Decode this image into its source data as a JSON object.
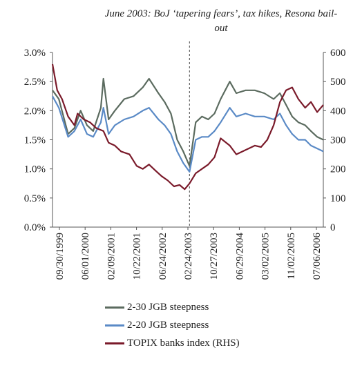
{
  "chart_data": {
    "type": "line",
    "annotation": "June 2003: BoJ ‘tapering fears’, tax hikes, Resona bail-out",
    "annotation_x": "2003-06-01",
    "y_left": {
      "ticks": [
        "0.0%",
        "0.5%",
        "1.0%",
        "1.5%",
        "2.0%",
        "2.5%",
        "3.0%"
      ],
      "range": [
        0,
        3.0
      ]
    },
    "y_right": {
      "ticks": [
        "0",
        "100",
        "200",
        "300",
        "400",
        "500",
        "600"
      ],
      "range": [
        0,
        600
      ]
    },
    "x_range": [
      "1999-09-30",
      "2006-12-31"
    ],
    "x_ticks": [
      "09/30/1999",
      "06/01/2000",
      "02/09/2001",
      "10/22/2001",
      "06/24/2002",
      "02/24/2003",
      "10/27/2003",
      "06/29/2004",
      "03/02/2005",
      "11/02/2005",
      "07/06/2006"
    ],
    "grid": false,
    "legend_position": "bottom",
    "series": [
      {
        "name": "2-30 JGB steepness",
        "axis": "left",
        "color": "#5b6b5f",
        "points": [
          [
            "1999-09-30",
            2.35
          ],
          [
            "1999-12-01",
            2.2
          ],
          [
            "2000-03-01",
            1.6
          ],
          [
            "2000-05-01",
            1.7
          ],
          [
            "2000-07-01",
            2.0
          ],
          [
            "2000-09-01",
            1.75
          ],
          [
            "2000-11-01",
            1.65
          ],
          [
            "2001-01-15",
            2.05
          ],
          [
            "2001-02-09",
            2.55
          ],
          [
            "2001-04-01",
            1.85
          ],
          [
            "2001-06-01",
            2.0
          ],
          [
            "2001-09-01",
            2.2
          ],
          [
            "2001-12-01",
            2.25
          ],
          [
            "2002-03-01",
            2.4
          ],
          [
            "2002-05-01",
            2.55
          ],
          [
            "2002-08-01",
            2.3
          ],
          [
            "2002-10-01",
            2.15
          ],
          [
            "2002-12-01",
            1.95
          ],
          [
            "2003-02-01",
            1.5
          ],
          [
            "2003-04-01",
            1.3
          ],
          [
            "2003-06-01",
            1.05
          ],
          [
            "2003-08-01",
            1.8
          ],
          [
            "2003-10-01",
            1.9
          ],
          [
            "2003-12-01",
            1.85
          ],
          [
            "2004-02-01",
            1.95
          ],
          [
            "2004-04-01",
            2.2
          ],
          [
            "2004-06-29",
            2.5
          ],
          [
            "2004-09-01",
            2.3
          ],
          [
            "2004-12-01",
            2.35
          ],
          [
            "2005-03-01",
            2.35
          ],
          [
            "2005-06-01",
            2.3
          ],
          [
            "2005-09-01",
            2.2
          ],
          [
            "2005-11-01",
            2.3
          ],
          [
            "2006-01-01",
            2.1
          ],
          [
            "2006-03-01",
            1.9
          ],
          [
            "2006-05-01",
            1.8
          ],
          [
            "2006-07-06",
            1.75
          ],
          [
            "2006-09-01",
            1.65
          ],
          [
            "2006-11-01",
            1.55
          ],
          [
            "2006-12-31",
            1.5
          ]
        ]
      },
      {
        "name": "2-20 JGB steepness",
        "axis": "left",
        "color": "#5a8ac6",
        "points": [
          [
            "1999-09-30",
            2.25
          ],
          [
            "1999-12-01",
            2.05
          ],
          [
            "2000-03-01",
            1.55
          ],
          [
            "2000-05-01",
            1.65
          ],
          [
            "2000-07-01",
            1.85
          ],
          [
            "2000-09-01",
            1.6
          ],
          [
            "2000-11-01",
            1.55
          ],
          [
            "2001-01-15",
            1.8
          ],
          [
            "2001-02-09",
            2.05
          ],
          [
            "2001-04-01",
            1.6
          ],
          [
            "2001-06-01",
            1.75
          ],
          [
            "2001-09-01",
            1.85
          ],
          [
            "2001-12-01",
            1.9
          ],
          [
            "2002-03-01",
            2.0
          ],
          [
            "2002-05-01",
            2.05
          ],
          [
            "2002-08-01",
            1.85
          ],
          [
            "2002-10-01",
            1.75
          ],
          [
            "2002-12-01",
            1.6
          ],
          [
            "2003-02-01",
            1.3
          ],
          [
            "2003-04-01",
            1.1
          ],
          [
            "2003-06-01",
            0.95
          ],
          [
            "2003-08-01",
            1.5
          ],
          [
            "2003-10-01",
            1.55
          ],
          [
            "2003-12-01",
            1.55
          ],
          [
            "2004-02-01",
            1.65
          ],
          [
            "2004-04-01",
            1.8
          ],
          [
            "2004-06-29",
            2.05
          ],
          [
            "2004-09-01",
            1.9
          ],
          [
            "2004-12-01",
            1.95
          ],
          [
            "2005-03-01",
            1.9
          ],
          [
            "2005-06-01",
            1.9
          ],
          [
            "2005-09-01",
            1.85
          ],
          [
            "2005-11-01",
            1.95
          ],
          [
            "2006-01-01",
            1.75
          ],
          [
            "2006-03-01",
            1.6
          ],
          [
            "2006-05-01",
            1.5
          ],
          [
            "2006-07-06",
            1.5
          ],
          [
            "2006-09-01",
            1.4
          ],
          [
            "2006-11-01",
            1.35
          ],
          [
            "2006-12-31",
            1.3
          ]
        ]
      },
      {
        "name": "TOPIX banks index (RHS)",
        "axis": "right",
        "color": "#7a1a2a",
        "points": [
          [
            "1999-09-30",
            560
          ],
          [
            "1999-11-15",
            470
          ],
          [
            "2000-01-01",
            440
          ],
          [
            "2000-03-01",
            380
          ],
          [
            "2000-05-01",
            350
          ],
          [
            "2000-06-01",
            390
          ],
          [
            "2000-08-01",
            370
          ],
          [
            "2000-10-01",
            360
          ],
          [
            "2000-12-01",
            340
          ],
          [
            "2001-02-09",
            330
          ],
          [
            "2001-04-01",
            290
          ],
          [
            "2001-06-01",
            280
          ],
          [
            "2001-08-01",
            260
          ],
          [
            "2001-10-22",
            250
          ],
          [
            "2002-01-01",
            210
          ],
          [
            "2002-03-01",
            200
          ],
          [
            "2002-05-01",
            215
          ],
          [
            "2002-07-01",
            195
          ],
          [
            "2002-09-01",
            175
          ],
          [
            "2002-11-01",
            160
          ],
          [
            "2003-01-01",
            140
          ],
          [
            "2003-02-24",
            145
          ],
          [
            "2003-04-15",
            130
          ],
          [
            "2003-06-01",
            150
          ],
          [
            "2003-08-01",
            185
          ],
          [
            "2003-10-01",
            200
          ],
          [
            "2003-12-01",
            215
          ],
          [
            "2004-02-01",
            240
          ],
          [
            "2004-04-01",
            305
          ],
          [
            "2004-06-29",
            280
          ],
          [
            "2004-09-01",
            250
          ],
          [
            "2004-12-01",
            265
          ],
          [
            "2005-03-02",
            280
          ],
          [
            "2005-05-01",
            275
          ],
          [
            "2005-07-01",
            300
          ],
          [
            "2005-09-01",
            350
          ],
          [
            "2005-11-02",
            430
          ],
          [
            "2006-01-01",
            470
          ],
          [
            "2006-03-01",
            480
          ],
          [
            "2006-05-01",
            440
          ],
          [
            "2006-07-06",
            410
          ],
          [
            "2006-09-01",
            430
          ],
          [
            "2006-11-01",
            395
          ],
          [
            "2006-12-31",
            420
          ]
        ]
      }
    ]
  }
}
